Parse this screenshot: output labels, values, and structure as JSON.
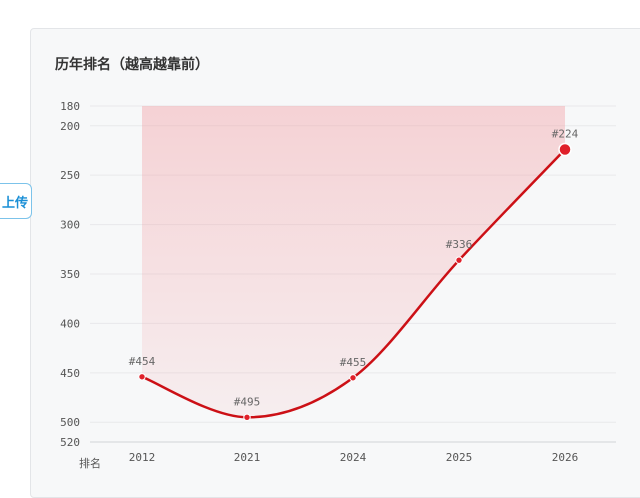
{
  "upload_tab": {
    "label": "上传"
  },
  "chart_data": {
    "type": "line",
    "title": "历年排名（越高越靠前）",
    "xlabel": "排名",
    "ylabel": "",
    "categories": [
      "2012",
      "2021",
      "2024",
      "2025",
      "2026"
    ],
    "series": [
      {
        "values": [
          454,
          495,
          455,
          336,
          224
        ],
        "labels": [
          "#454",
          "#495",
          "#455",
          "#336",
          "#224"
        ]
      }
    ],
    "y_ticks": [
      180,
      200,
      250,
      300,
      350,
      400,
      450,
      500,
      520
    ],
    "ylim": [
      180,
      520
    ],
    "y_inverted": true,
    "grid": true,
    "colors": {
      "line": "#cc1016",
      "area": "#f2a3a8",
      "point": "#e0202a"
    }
  }
}
